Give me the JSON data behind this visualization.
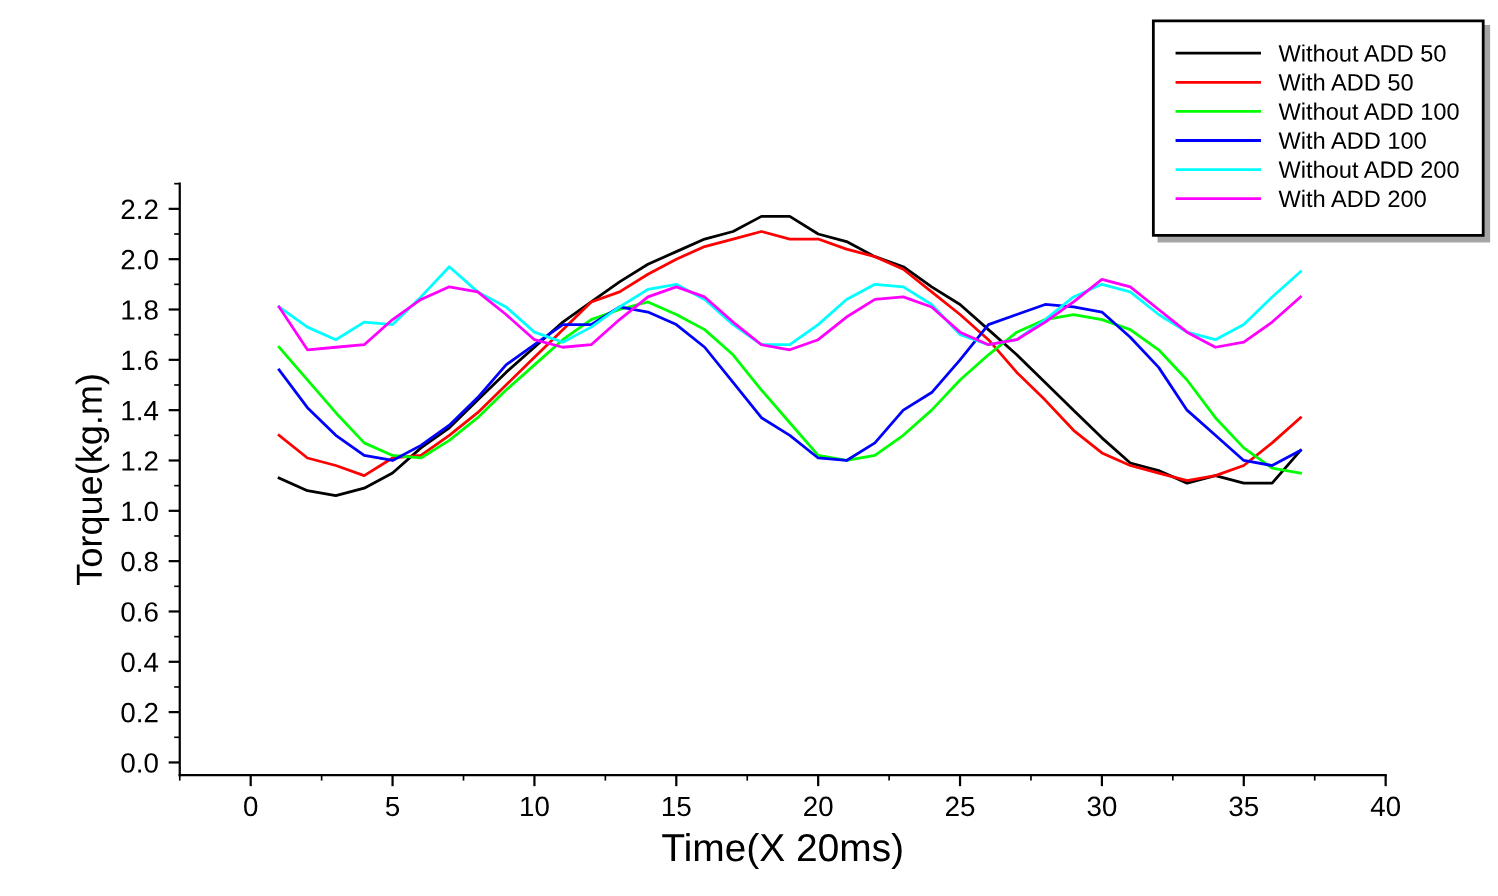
{
  "chart_data": {
    "type": "line",
    "xlabel": "Time(X 20ms)",
    "ylabel": "Torque(kg.m)",
    "x": [
      1,
      2,
      3,
      4,
      5,
      6,
      7,
      8,
      9,
      10,
      11,
      12,
      13,
      14,
      15,
      16,
      17,
      18,
      19,
      20,
      21,
      22,
      23,
      24,
      25,
      26,
      27,
      28,
      29,
      30,
      31,
      32,
      33,
      34,
      35,
      36,
      37
    ],
    "series": [
      {
        "name": "Without ADD 50",
        "color": "#000000",
        "values": [
          1.13,
          1.08,
          1.06,
          1.09,
          1.15,
          1.25,
          1.33,
          1.44,
          1.55,
          1.65,
          1.75,
          1.83,
          1.91,
          1.98,
          2.03,
          2.08,
          2.11,
          2.17,
          2.17,
          2.1,
          2.07,
          2.01,
          1.97,
          1.89,
          1.82,
          1.72,
          1.62,
          1.51,
          1.4,
          1.29,
          1.19,
          1.16,
          1.11,
          1.14,
          1.11,
          1.11,
          1.24
        ]
      },
      {
        "name": "With ADD 50",
        "color": "#ff0000",
        "values": [
          1.3,
          1.21,
          1.18,
          1.14,
          1.21,
          1.22,
          1.3,
          1.39,
          1.5,
          1.61,
          1.72,
          1.83,
          1.87,
          1.94,
          2.0,
          2.05,
          2.08,
          2.11,
          2.08,
          2.08,
          2.04,
          2.01,
          1.96,
          1.87,
          1.78,
          1.68,
          1.55,
          1.44,
          1.32,
          1.23,
          1.18,
          1.15,
          1.12,
          1.14,
          1.18,
          1.27,
          1.37
        ]
      },
      {
        "name": "Without ADD 100",
        "color": "#00ff00",
        "values": [
          1.65,
          1.52,
          1.39,
          1.27,
          1.22,
          1.21,
          1.28,
          1.37,
          1.48,
          1.58,
          1.68,
          1.76,
          1.8,
          1.83,
          1.78,
          1.72,
          1.62,
          1.48,
          1.35,
          1.22,
          1.2,
          1.22,
          1.3,
          1.4,
          1.52,
          1.62,
          1.71,
          1.76,
          1.78,
          1.76,
          1.72,
          1.64,
          1.52,
          1.37,
          1.25,
          1.17,
          1.15
        ]
      },
      {
        "name": "With ADD 100",
        "color": "#0000ff",
        "values": [
          1.56,
          1.41,
          1.3,
          1.22,
          1.2,
          1.26,
          1.34,
          1.45,
          1.58,
          1.66,
          1.74,
          1.74,
          1.81,
          1.79,
          1.74,
          1.65,
          1.51,
          1.37,
          1.3,
          1.21,
          1.2,
          1.27,
          1.4,
          1.47,
          1.6,
          1.74,
          1.78,
          1.82,
          1.81,
          1.79,
          1.69,
          1.57,
          1.4,
          1.3,
          1.2,
          1.18,
          1.24
        ]
      },
      {
        "name": "Without ADD 200",
        "color": "#00ffff",
        "values": [
          1.81,
          1.73,
          1.68,
          1.75,
          1.74,
          1.85,
          1.97,
          1.87,
          1.81,
          1.71,
          1.67,
          1.73,
          1.81,
          1.88,
          1.9,
          1.84,
          1.74,
          1.66,
          1.66,
          1.74,
          1.84,
          1.9,
          1.89,
          1.82,
          1.7,
          1.66,
          1.68,
          1.76,
          1.85,
          1.9,
          1.87,
          1.78,
          1.71,
          1.68,
          1.74,
          1.85,
          1.95
        ]
      },
      {
        "name": "With ADD 200",
        "color": "#ff00ff",
        "values": [
          1.81,
          1.64,
          1.65,
          1.66,
          1.76,
          1.84,
          1.89,
          1.87,
          1.78,
          1.68,
          1.65,
          1.66,
          1.76,
          1.85,
          1.89,
          1.85,
          1.75,
          1.66,
          1.64,
          1.68,
          1.77,
          1.84,
          1.85,
          1.81,
          1.71,
          1.66,
          1.68,
          1.75,
          1.83,
          1.92,
          1.89,
          1.8,
          1.71,
          1.65,
          1.67,
          1.75,
          1.85
        ]
      }
    ],
    "xlim": [
      -2.5,
      40
    ],
    "xticks": [
      0,
      5,
      10,
      15,
      20,
      25,
      30,
      35,
      40
    ],
    "ylim": [
      -0.05,
      2.3
    ],
    "yticks": [
      {
        "value": 0,
        "label": "0.0"
      },
      0.2,
      0.4,
      0.6,
      0.8,
      {
        "value": 1,
        "label": "1.0"
      },
      1.2,
      1.4,
      1.6,
      1.8,
      {
        "value": 2,
        "label": "2.0"
      },
      2.2
    ],
    "grid": false,
    "legend": "top right",
    "marker": "none",
    "line_style": "solid"
  }
}
